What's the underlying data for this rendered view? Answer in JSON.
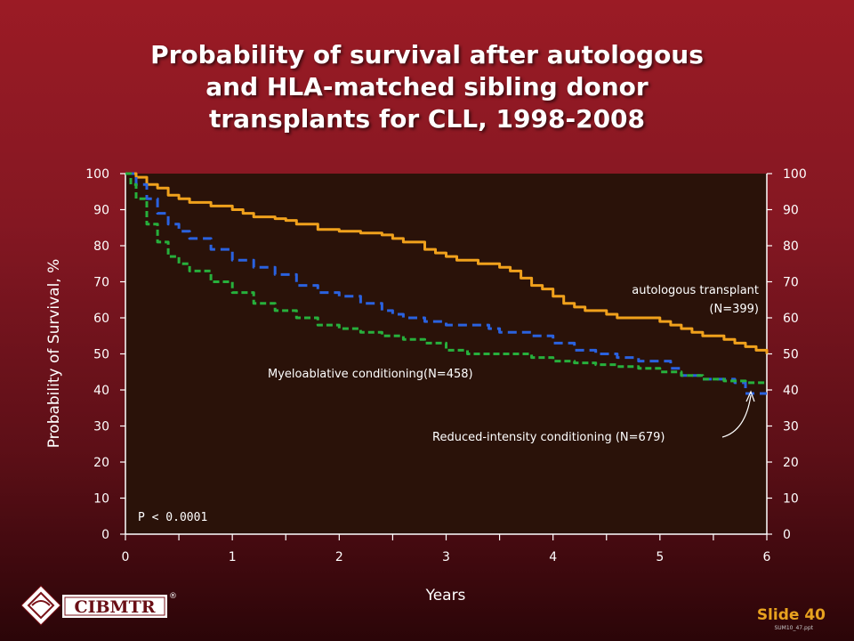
{
  "slide": {
    "title_lines": [
      "Probability of survival after autologous",
      "and HLA-matched sibling donor",
      "transplants for CLL, 1998-2008"
    ],
    "number": "Slide 40",
    "file_ref": "SUM10_47.ppt",
    "logo_text": "CIBMTR",
    "logo_mark": "®"
  },
  "colors": {
    "background_top": "#9b1b25",
    "plot_background": "#2a1209",
    "autologous": "#f0a11c",
    "myeloablative": "#2a62e0",
    "reduced_intensity": "#27b03c",
    "slide_number": "#e8a21f"
  },
  "chart_data": {
    "type": "line",
    "title": "Probability of survival after autologous and HLA-matched sibling donor transplants for CLL, 1998-2008",
    "xlabel": "Years",
    "ylabel": "Probability of Survival, %",
    "xlim": [
      0,
      6
    ],
    "ylim": [
      0,
      100
    ],
    "x_ticks": [
      "0",
      "1",
      "2",
      "3",
      "4",
      "5",
      "6"
    ],
    "y_ticks": [
      "0",
      "10",
      "20",
      "30",
      "40",
      "50",
      "60",
      "70",
      "80",
      "90",
      "100"
    ],
    "right_axis_ticks": [
      "0",
      "10",
      "20",
      "30",
      "40",
      "50",
      "60",
      "70",
      "80",
      "90",
      "100"
    ],
    "grid": false,
    "p_value": "P < 0.0001",
    "series": [
      {
        "name": "autologous transplant (N=399)",
        "label_lines": [
          "autologous transplant",
          "(N=399)"
        ],
        "style": "solid",
        "color": "#f0a11c",
        "x": [
          0,
          0.1,
          0.2,
          0.3,
          0.4,
          0.5,
          0.6,
          0.8,
          1.0,
          1.1,
          1.2,
          1.4,
          1.5,
          1.6,
          1.8,
          2.0,
          2.2,
          2.4,
          2.5,
          2.6,
          2.8,
          2.9,
          3.0,
          3.1,
          3.3,
          3.5,
          3.6,
          3.7,
          3.8,
          3.9,
          4.0,
          4.1,
          4.2,
          4.3,
          4.5,
          4.6,
          4.7,
          5.0,
          5.1,
          5.2,
          5.3,
          5.4,
          5.6,
          5.7,
          5.8,
          5.9,
          6.0
        ],
        "y": [
          100,
          99,
          97,
          96,
          94,
          93,
          92,
          91,
          90,
          89,
          88,
          87.5,
          87,
          86,
          84.5,
          84,
          83.5,
          83,
          82,
          81,
          79,
          78,
          77,
          76,
          75,
          74,
          73,
          71,
          69,
          68,
          66,
          64,
          63,
          62,
          61,
          60,
          60,
          59,
          58,
          57,
          56,
          55,
          54,
          53,
          52,
          51,
          50
        ]
      },
      {
        "name": "Myeloablative conditioning(N=458)",
        "label_lines": [
          "Myeloablative conditioning(N=458)"
        ],
        "style": "dashed",
        "color": "#2a62e0",
        "x": [
          0,
          0.1,
          0.2,
          0.3,
          0.4,
          0.5,
          0.6,
          0.8,
          1.0,
          1.2,
          1.4,
          1.6,
          1.8,
          2.0,
          2.2,
          2.4,
          2.5,
          2.6,
          2.8,
          3.0,
          3.2,
          3.4,
          3.5,
          3.6,
          3.8,
          4.0,
          4.2,
          4.4,
          4.6,
          4.8,
          5.0,
          5.1,
          5.2,
          5.4,
          5.6,
          5.7,
          5.8,
          5.9,
          6.0
        ],
        "y": [
          100,
          97,
          93,
          89,
          86,
          84,
          82,
          79,
          76,
          74,
          72,
          69,
          67,
          66,
          64,
          62,
          61,
          60,
          59,
          58,
          58,
          57,
          56,
          56,
          55,
          53,
          51,
          50,
          49,
          48,
          48,
          46,
          44,
          43,
          43,
          42,
          39,
          39,
          39
        ]
      },
      {
        "name": "Reduced-intensity conditioning (N=679)",
        "label_lines": [
          "Reduced-intensity conditioning (N=679)"
        ],
        "style": "dashed",
        "color": "#27b03c",
        "x": [
          0,
          0.05,
          0.1,
          0.2,
          0.3,
          0.4,
          0.5,
          0.6,
          0.8,
          1.0,
          1.2,
          1.4,
          1.6,
          1.8,
          2.0,
          2.2,
          2.4,
          2.6,
          2.8,
          3.0,
          3.2,
          3.4,
          3.6,
          3.8,
          4.0,
          4.2,
          4.4,
          4.6,
          4.8,
          5.0,
          5.2,
          5.4,
          5.6,
          5.8,
          6.0
        ],
        "y": [
          100,
          97,
          93,
          86,
          81,
          77,
          75,
          73,
          70,
          67,
          64,
          62,
          60,
          58,
          57,
          56,
          55,
          54,
          53,
          51,
          50,
          50,
          50,
          49,
          48,
          47.5,
          47,
          46.5,
          46,
          45,
          44,
          43,
          42.5,
          42,
          42
        ]
      }
    ]
  }
}
